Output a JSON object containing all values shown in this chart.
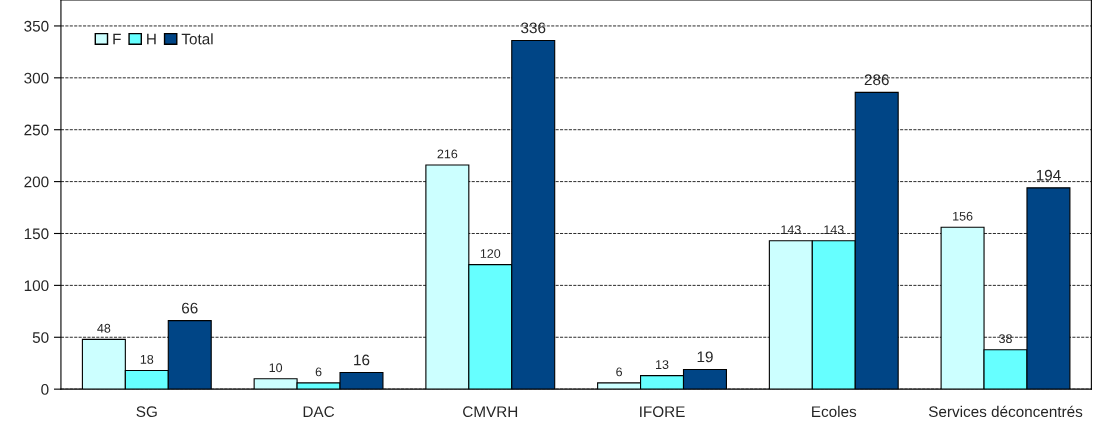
{
  "chart_data": {
    "type": "bar",
    "categories": [
      "SG",
      "DAC",
      "CMVRH",
      "IFORE",
      "Ecoles",
      "Services déconcentrés"
    ],
    "series": [
      {
        "name": "F",
        "color": "#ccffff",
        "values": [
          48,
          10,
          216,
          6,
          143,
          156
        ]
      },
      {
        "name": "H",
        "color": "#66ffff",
        "values": [
          18,
          6,
          120,
          13,
          143,
          38
        ]
      },
      {
        "name": "Total",
        "color": "#004586",
        "values": [
          66,
          16,
          336,
          19,
          286,
          194
        ]
      }
    ],
    "ylim": [
      0,
      375
    ],
    "yticks": [
      0,
      50,
      100,
      150,
      200,
      250,
      300,
      350
    ],
    "grid": "y",
    "legend": "top left",
    "data_labels": true
  }
}
